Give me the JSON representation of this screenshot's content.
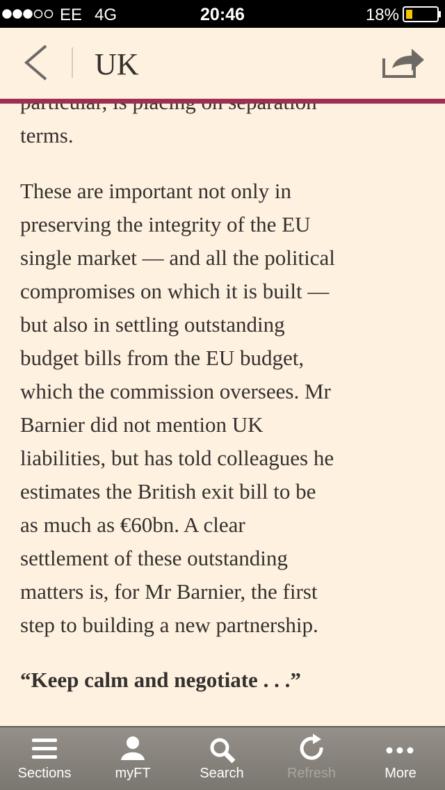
{
  "status_bar": {
    "carrier": "EE",
    "network": "4G",
    "time": "20:46",
    "battery": "18%"
  },
  "header": {
    "title": "UK"
  },
  "article": {
    "lines": [
      "particular, is placing on separation",
      "terms.",
      "These are important not only in",
      "preserving the integrity of the EU",
      "single market — and all the political",
      "compromises on which it is built —",
      "but also in settling outstanding",
      "budget bills from the EU budget,",
      "which the commission oversees. Mr",
      "Barnier did not mention UK",
      "liabilities, but has told colleagues he",
      "estimates the British exit bill to be",
      "as much as €60bn. A clear",
      "settlement of these outstanding",
      "matters is, for Mr Barnier, the first",
      "step to building a new partnership."
    ],
    "subheading": "“Keep calm and negotiate . . .”"
  },
  "tab_bar": {
    "tabs": [
      "Sections",
      "myFT",
      "Search",
      "Refresh",
      "More"
    ]
  }
}
